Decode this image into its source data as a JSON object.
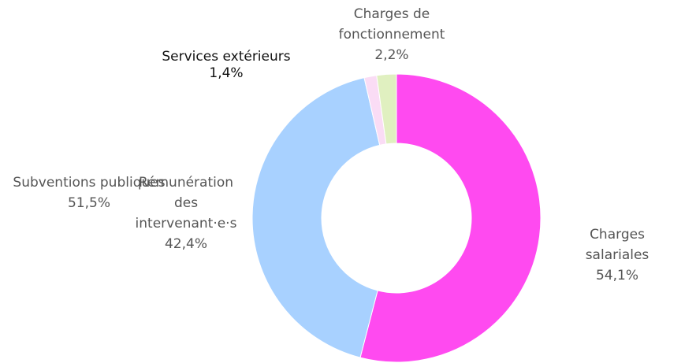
{
  "chart_data": {
    "type": "donut",
    "categories": [
      "Charges salariales",
      "Rémunération\ndes\nintervenant·e·s",
      "Services extérieurs",
      "Charges de\nfonctionnement"
    ],
    "values": [
      54.1,
      42.4,
      1.4,
      2.2
    ],
    "value_labels": [
      "54,1%",
      "42,4%",
      "1,4%",
      "2,2%"
    ],
    "colors": [
      "#ff4af0",
      "#a8d1ff",
      "#fadcf5",
      "#e0f0c0"
    ],
    "annotations": [
      {
        "text": "Subventions publiques",
        "label": "51,5%"
      }
    ]
  }
}
